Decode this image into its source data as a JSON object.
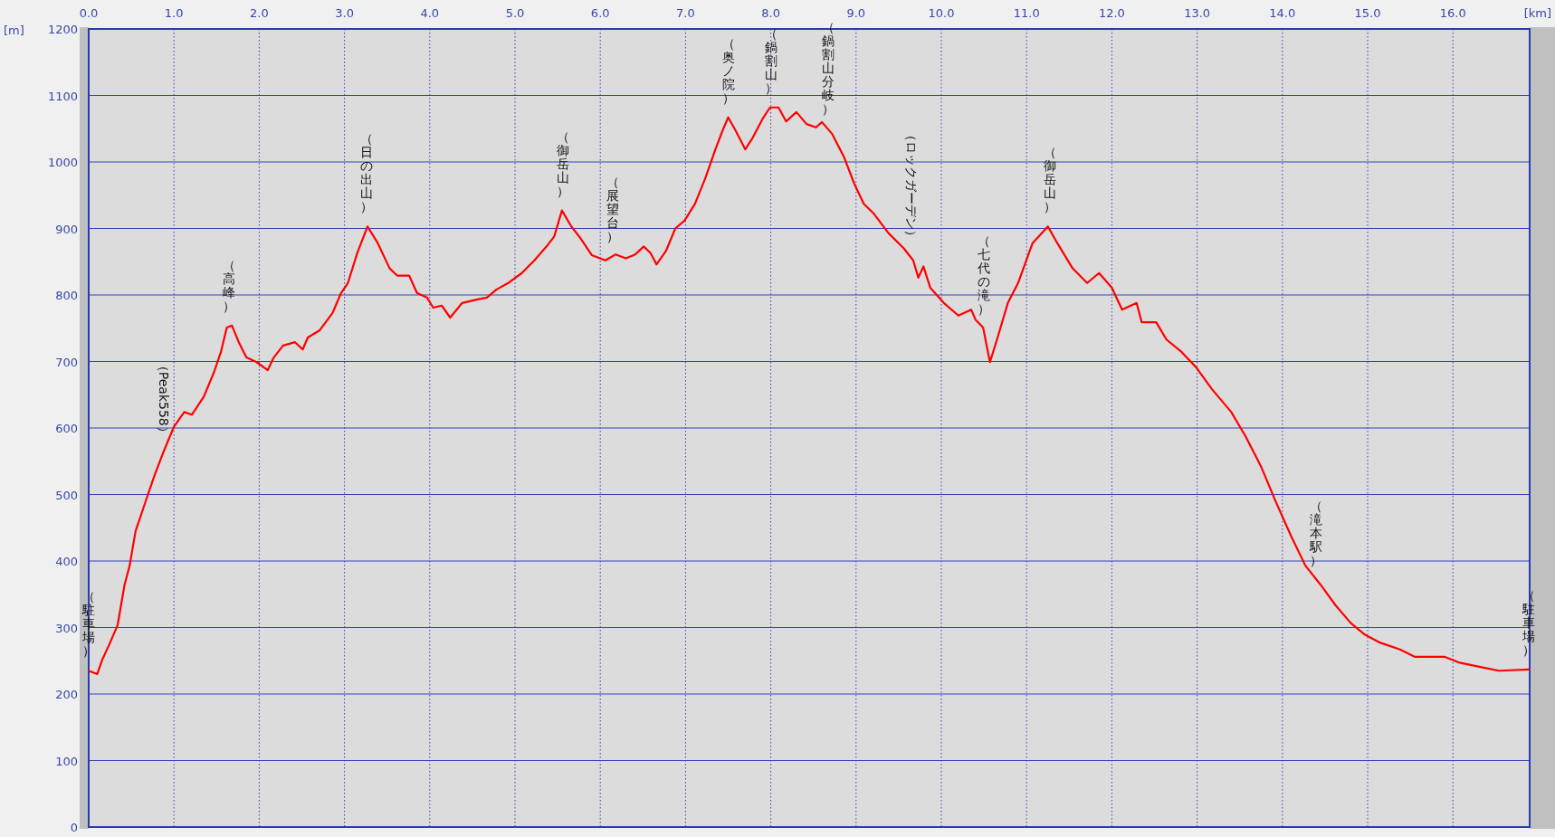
{
  "chart_data": {
    "type": "line",
    "xlabel": "[km]",
    "ylabel": "[m]",
    "xlim": [
      0,
      16.9
    ],
    "ylim": [
      0,
      1200
    ],
    "xticks": [
      {
        "value": 0,
        "label": "0.0"
      },
      {
        "value": 1,
        "label": "1.0"
      },
      {
        "value": 2,
        "label": "2.0"
      },
      {
        "value": 3,
        "label": "3.0"
      },
      {
        "value": 4,
        "label": "4.0"
      },
      {
        "value": 5,
        "label": "5.0"
      },
      {
        "value": 6,
        "label": "6.0"
      },
      {
        "value": 7,
        "label": "7.0"
      },
      {
        "value": 8,
        "label": "8.0"
      },
      {
        "value": 9,
        "label": "9.0"
      },
      {
        "value": 10,
        "label": "10.0"
      },
      {
        "value": 11,
        "label": "11.0"
      },
      {
        "value": 12,
        "label": "12.0"
      },
      {
        "value": 13,
        "label": "13.0"
      },
      {
        "value": 14,
        "label": "14.0"
      },
      {
        "value": 15,
        "label": "15.0"
      },
      {
        "value": 16,
        "label": "16.0"
      }
    ],
    "yticks": [
      0,
      100,
      200,
      300,
      400,
      500,
      600,
      700,
      800,
      900,
      1000,
      1100,
      1200
    ],
    "grid": true,
    "line_style": "solid",
    "marker": "none",
    "x": [
      0,
      0.1,
      0.16,
      0.24,
      0.34,
      0.42,
      0.48,
      0.55,
      0.65,
      0.77,
      0.88,
      1.0,
      1.12,
      1.21,
      1.35,
      1.47,
      1.55,
      1.62,
      1.68,
      1.76,
      1.85,
      1.97,
      2.1,
      2.17,
      2.28,
      2.42,
      2.51,
      2.57,
      2.71,
      2.86,
      2.96,
      3.04,
      3.15,
      3.27,
      3.39,
      3.53,
      3.62,
      3.76,
      3.85,
      3.97,
      4.04,
      4.14,
      4.24,
      4.38,
      4.55,
      4.67,
      4.78,
      4.92,
      5.08,
      5.22,
      5.37,
      5.46,
      5.55,
      5.66,
      5.77,
      5.9,
      6.06,
      6.18,
      6.3,
      6.41,
      6.51,
      6.59,
      6.66,
      6.77,
      6.88,
      6.99,
      7.11,
      7.23,
      7.35,
      7.44,
      7.5,
      7.58,
      7.7,
      7.79,
      7.9,
      7.99,
      8.09,
      8.18,
      8.3,
      8.42,
      8.53,
      8.6,
      8.72,
      8.86,
      8.98,
      9.09,
      9.21,
      9.38,
      9.56,
      9.67,
      9.73,
      9.79,
      9.87,
      10.03,
      10.2,
      10.35,
      10.4,
      10.49,
      10.57,
      10.66,
      10.78,
      10.9,
      11.07,
      11.25,
      11.36,
      11.54,
      11.71,
      11.85,
      12.0,
      12.12,
      12.29,
      12.35,
      12.52,
      12.64,
      12.82,
      12.99,
      13.17,
      13.4,
      13.57,
      13.75,
      13.92,
      14.1,
      14.27,
      14.45,
      14.62,
      14.8,
      14.97,
      15.15,
      15.38,
      15.55,
      15.73,
      15.9,
      16.08,
      16.31,
      16.54,
      16.89
    ],
    "series": [
      {
        "color": "#ff0000",
        "values": [
          235,
          230,
          252,
          274,
          304,
          364,
          393,
          445,
          483,
          528,
          565,
          602,
          624,
          620,
          647,
          684,
          714,
          751,
          754,
          729,
          706,
          699,
          687,
          706,
          724,
          729,
          718,
          736,
          747,
          773,
          803,
          818,
          863,
          903,
          878,
          840,
          829,
          829,
          803,
          796,
          781,
          784,
          766,
          788,
          793,
          796,
          808,
          818,
          833,
          851,
          873,
          888,
          927,
          903,
          885,
          860,
          852,
          861,
          855,
          861,
          873,
          863,
          846,
          866,
          900,
          912,
          937,
          975,
          1019,
          1049,
          1067,
          1049,
          1019,
          1037,
          1064,
          1082,
          1082,
          1061,
          1075,
          1057,
          1052,
          1060,
          1042,
          1007,
          967,
          937,
          922,
          893,
          870,
          852,
          826,
          843,
          811,
          788,
          769,
          778,
          763,
          751,
          699,
          736,
          788,
          818,
          878,
          903,
          878,
          840,
          818,
          833,
          811,
          778,
          788,
          759,
          759,
          733,
          714,
          691,
          659,
          624,
          587,
          542,
          490,
          438,
          393,
          364,
          334,
          307,
          289,
          277,
          267,
          256,
          256,
          256,
          247,
          241,
          235,
          237
        ]
      }
    ],
    "annotations": [
      {
        "text": "（駐車場）",
        "x": 0,
        "y": 235
      },
      {
        "text": "（Peak558）",
        "x": 0.88,
        "y": 565
      },
      {
        "text": "（高峰）",
        "x": 1.65,
        "y": 754
      },
      {
        "text": "（日の出山）",
        "x": 3.26,
        "y": 903
      },
      {
        "text": "（御岳山）",
        "x": 5.56,
        "y": 927
      },
      {
        "text": "（展望台）",
        "x": 6.15,
        "y": 858
      },
      {
        "text": "（奥ノ院）",
        "x": 7.5,
        "y": 1067
      },
      {
        "text": "（鍋割山）",
        "x": 8.0,
        "y": 1082
      },
      {
        "text": "（鍋割山分岐）",
        "x": 8.67,
        "y": 1050
      },
      {
        "text": "（ロックガーデン）",
        "x": 9.65,
        "y": 860
      },
      {
        "text": "（七代の滝）",
        "x": 10.5,
        "y": 750
      },
      {
        "text": "（御岳山）",
        "x": 11.27,
        "y": 903
      },
      {
        "text": "（滝本駅）",
        "x": 14.4,
        "y": 372
      },
      {
        "text": "（駐車場）",
        "x": 16.89,
        "y": 237
      }
    ]
  }
}
